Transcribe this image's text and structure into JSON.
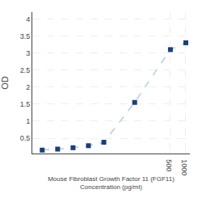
{
  "chart_data": {
    "type": "line",
    "x_label": "Mouse Fibroblast Growth Factor 11 (FGF11)\nConcentration (pg/ml)",
    "y_label": "OD",
    "x": [
      1.56,
      3.125,
      6.25,
      12.5,
      25,
      100,
      500,
      1000
    ],
    "series": [
      {
        "type": "line",
        "color": "#b0cfe8",
        "line_style": "dashed",
        "values": [
          0.15,
          0.18,
          0.22,
          0.28,
          0.38,
          1.55,
          3.1,
          3.3
        ]
      },
      {
        "type": "scatter",
        "color": "#1a3f7a",
        "marker": "square",
        "values": [
          0.15,
          0.18,
          0.22,
          0.28,
          0.38,
          1.55,
          3.1,
          3.3
        ]
      }
    ],
    "log": "x",
    "xlim": [
      1.0,
      1200
    ],
    "xticks": [
      500,
      1000
    ],
    "ylim": [
      0.05,
      4.2
    ],
    "yticks": [
      0.5,
      1.0,
      1.5,
      2.0,
      2.5,
      3.0,
      3.5,
      4.0
    ],
    "grid": true
  }
}
